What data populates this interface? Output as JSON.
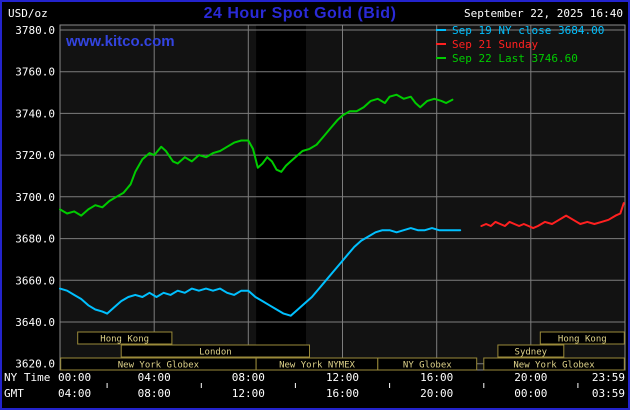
{
  "header": {
    "units": "USD/oz",
    "title": "24 Hour Spot Gold (Bid)",
    "datetime": "September 22, 2025 16:40",
    "watermark": "www.kitco.com"
  },
  "axes": {
    "ny_time_label": "NY Time",
    "gmt_label": "GMT"
  },
  "colors": {
    "title_blue": "#2a2ad8",
    "watermark_blue": "#3344e0",
    "border_blue": "#2323cd",
    "grid_gray": "#7d7d7d",
    "plot_background": "#121212",
    "dark_band": "#000000",
    "session_border": "#9a8a3a",
    "session_text": "#ddd189",
    "tick_text": "#ffffff"
  },
  "chart_data": {
    "type": "line",
    "title": "24 Hour Spot Gold (Bid)",
    "ylabel": "USD/oz",
    "ylim": [
      3620,
      3780
    ],
    "y_tick_step": 20,
    "x_hours": [
      0,
      24
    ],
    "grid": true,
    "legend_position": "top-right",
    "ny_ticks": {
      "hours": [
        0,
        4,
        8,
        12,
        16,
        20,
        23.983
      ],
      "labels": [
        "00:00",
        "04:00",
        "08:00",
        "12:00",
        "16:00",
        "20:00",
        "23:59"
      ]
    },
    "gmt_ticks": {
      "labels": [
        "04:00",
        "08:00",
        "12:00",
        "16:00",
        "20:00",
        "00:00",
        "03:59"
      ]
    },
    "minor_tick_hours": [
      2,
      6,
      10,
      14,
      18,
      22
    ],
    "dark_band_hours": [
      8.33,
      10.45
    ],
    "series": [
      {
        "id": "sep19",
        "name": "Sep 19 NY close 3684.00",
        "close_value": 3684.0,
        "color": "#00c0ff",
        "points": [
          [
            0,
            3656
          ],
          [
            0.3,
            3655
          ],
          [
            0.6,
            3653
          ],
          [
            0.9,
            3651
          ],
          [
            1.2,
            3648
          ],
          [
            1.5,
            3646
          ],
          [
            1.8,
            3645
          ],
          [
            2,
            3644
          ],
          [
            2.3,
            3647
          ],
          [
            2.6,
            3650
          ],
          [
            2.9,
            3652
          ],
          [
            3.2,
            3653
          ],
          [
            3.5,
            3652
          ],
          [
            3.8,
            3654
          ],
          [
            4.1,
            3652
          ],
          [
            4.4,
            3654
          ],
          [
            4.7,
            3653
          ],
          [
            5,
            3655
          ],
          [
            5.3,
            3654
          ],
          [
            5.6,
            3656
          ],
          [
            5.9,
            3655
          ],
          [
            6.2,
            3656
          ],
          [
            6.5,
            3655
          ],
          [
            6.8,
            3656
          ],
          [
            7.1,
            3654
          ],
          [
            7.4,
            3653
          ],
          [
            7.7,
            3655
          ],
          [
            8,
            3655
          ],
          [
            8.3,
            3652
          ],
          [
            8.6,
            3650
          ],
          [
            8.9,
            3648
          ],
          [
            9.2,
            3646
          ],
          [
            9.5,
            3644
          ],
          [
            9.8,
            3643
          ],
          [
            10.1,
            3646
          ],
          [
            10.4,
            3649
          ],
          [
            10.7,
            3652
          ],
          [
            11,
            3656
          ],
          [
            11.3,
            3660
          ],
          [
            11.6,
            3664
          ],
          [
            11.9,
            3668
          ],
          [
            12.2,
            3672
          ],
          [
            12.5,
            3676
          ],
          [
            12.8,
            3679
          ],
          [
            13.1,
            3681
          ],
          [
            13.4,
            3683
          ],
          [
            13.7,
            3684
          ],
          [
            14,
            3684
          ],
          [
            14.3,
            3683
          ],
          [
            14.6,
            3684
          ],
          [
            14.9,
            3685
          ],
          [
            15.2,
            3684
          ],
          [
            15.5,
            3684
          ],
          [
            15.8,
            3685
          ],
          [
            16.1,
            3684
          ],
          [
            16.4,
            3684
          ],
          [
            16.7,
            3684
          ],
          [
            17,
            3684
          ]
        ]
      },
      {
        "id": "sep21",
        "name": "Sep 21 Sunday",
        "color": "#ff2020",
        "points": [
          [
            17.9,
            3686
          ],
          [
            18.1,
            3687
          ],
          [
            18.3,
            3686
          ],
          [
            18.5,
            3688
          ],
          [
            18.7,
            3687
          ],
          [
            18.9,
            3686
          ],
          [
            19.1,
            3688
          ],
          [
            19.3,
            3687
          ],
          [
            19.5,
            3686
          ],
          [
            19.7,
            3687
          ],
          [
            19.9,
            3686
          ],
          [
            20.1,
            3685
          ],
          [
            20.3,
            3686
          ],
          [
            20.6,
            3688
          ],
          [
            20.9,
            3687
          ],
          [
            21.2,
            3689
          ],
          [
            21.5,
            3691
          ],
          [
            21.8,
            3689
          ],
          [
            22.1,
            3687
          ],
          [
            22.4,
            3688
          ],
          [
            22.7,
            3687
          ],
          [
            23,
            3688
          ],
          [
            23.3,
            3689
          ],
          [
            23.6,
            3691
          ],
          [
            23.8,
            3692
          ],
          [
            23.95,
            3697
          ]
        ]
      },
      {
        "id": "sep22",
        "name": "Sep 22 Last 3746.60",
        "last_value": 3746.6,
        "color": "#00cc00",
        "points": [
          [
            0,
            3694
          ],
          [
            0.3,
            3692
          ],
          [
            0.6,
            3693
          ],
          [
            0.9,
            3691
          ],
          [
            1.2,
            3694
          ],
          [
            1.5,
            3696
          ],
          [
            1.8,
            3695
          ],
          [
            2.1,
            3698
          ],
          [
            2.4,
            3700
          ],
          [
            2.7,
            3702
          ],
          [
            3,
            3706
          ],
          [
            3.2,
            3712
          ],
          [
            3.5,
            3718
          ],
          [
            3.8,
            3721
          ],
          [
            4,
            3720
          ],
          [
            4.3,
            3724
          ],
          [
            4.5,
            3722
          ],
          [
            4.8,
            3717
          ],
          [
            5,
            3716
          ],
          [
            5.3,
            3719
          ],
          [
            5.6,
            3717
          ],
          [
            5.9,
            3720
          ],
          [
            6.2,
            3719
          ],
          [
            6.5,
            3721
          ],
          [
            6.8,
            3722
          ],
          [
            7.1,
            3724
          ],
          [
            7.4,
            3726
          ],
          [
            7.7,
            3727
          ],
          [
            8,
            3727
          ],
          [
            8.2,
            3723
          ],
          [
            8.4,
            3714
          ],
          [
            8.6,
            3716
          ],
          [
            8.8,
            3719
          ],
          [
            9,
            3717
          ],
          [
            9.2,
            3713
          ],
          [
            9.4,
            3712
          ],
          [
            9.6,
            3715
          ],
          [
            9.8,
            3717
          ],
          [
            10,
            3719
          ],
          [
            10.3,
            3722
          ],
          [
            10.6,
            3723
          ],
          [
            10.9,
            3725
          ],
          [
            11.2,
            3729
          ],
          [
            11.5,
            3733
          ],
          [
            11.8,
            3737
          ],
          [
            12,
            3739
          ],
          [
            12.3,
            3741
          ],
          [
            12.6,
            3741
          ],
          [
            12.9,
            3743
          ],
          [
            13.2,
            3746
          ],
          [
            13.5,
            3747
          ],
          [
            13.8,
            3745
          ],
          [
            14,
            3748
          ],
          [
            14.3,
            3749
          ],
          [
            14.6,
            3747
          ],
          [
            14.9,
            3748
          ],
          [
            15.1,
            3745
          ],
          [
            15.3,
            3743
          ],
          [
            15.6,
            3746
          ],
          [
            15.9,
            3747
          ],
          [
            16.2,
            3746
          ],
          [
            16.4,
            3745
          ],
          [
            16.67,
            3746.6
          ]
        ]
      }
    ],
    "sessions": [
      {
        "label": "Hong Kong",
        "row": 0,
        "start": 0.75,
        "end": 4.75
      },
      {
        "label": "Hong Kong",
        "row": 0,
        "start": 20.4,
        "end": 23.97
      },
      {
        "label": "London",
        "row": 1,
        "start": 2.6,
        "end": 10.6
      },
      {
        "label": "Sydney",
        "row": 1,
        "start": 18.6,
        "end": 21.4
      },
      {
        "label": "New York Globex",
        "row": 2,
        "start": 0.03,
        "end": 8.33
      },
      {
        "label": "New York NYMEX",
        "row": 2,
        "start": 8.33,
        "end": 13.5
      },
      {
        "label": "NY Globex",
        "row": 2,
        "start": 13.5,
        "end": 17.7
      },
      {
        "label": "New York Globex",
        "row": 2,
        "start": 18.0,
        "end": 23.97
      }
    ]
  }
}
